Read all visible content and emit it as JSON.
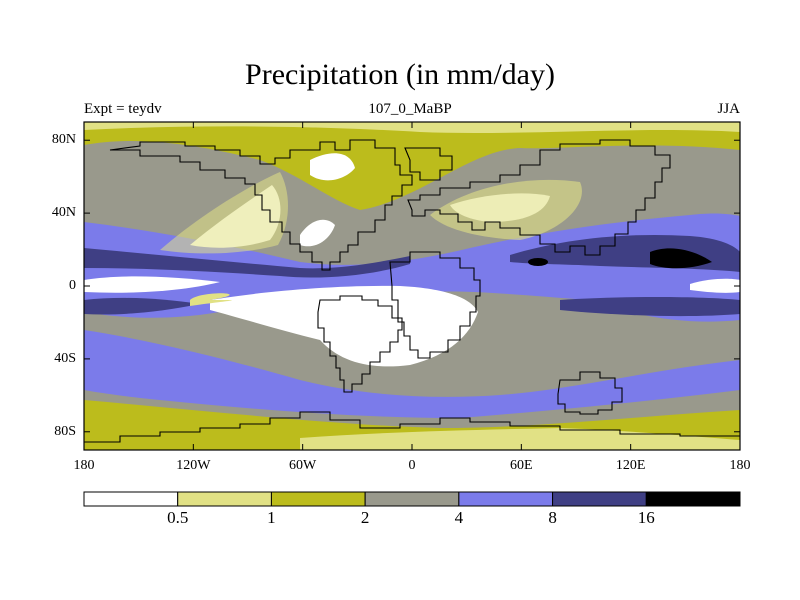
{
  "title": "Precipitation (in mm/day)",
  "subtitle_left": "Expt = teydv",
  "subtitle_center": "107_0_MaBP",
  "subtitle_right": "JJA",
  "y_ticks": [
    {
      "label": "80N",
      "lat": 80
    },
    {
      "label": "40N",
      "lat": 40
    },
    {
      "label": "0",
      "lat": 0
    },
    {
      "label": "40S",
      "lat": -40
    },
    {
      "label": "80S",
      "lat": -80
    }
  ],
  "x_ticks": [
    {
      "label": "180",
      "lon": -180
    },
    {
      "label": "120W",
      "lon": -120
    },
    {
      "label": "60W",
      "lon": -60
    },
    {
      "label": "0",
      "lon": 0
    },
    {
      "label": "60E",
      "lon": 60
    },
    {
      "label": "120E",
      "lon": 120
    },
    {
      "label": "180",
      "lon": 180
    }
  ],
  "colorbar": {
    "levels": [
      "0.5",
      "1",
      "2",
      "4",
      "8",
      "16"
    ],
    "colors": [
      "#ffffff",
      "#e1e185",
      "#bcbc1c",
      "#99998c",
      "#7b7bea",
      "#3f3f84",
      "#000000"
    ]
  }
}
